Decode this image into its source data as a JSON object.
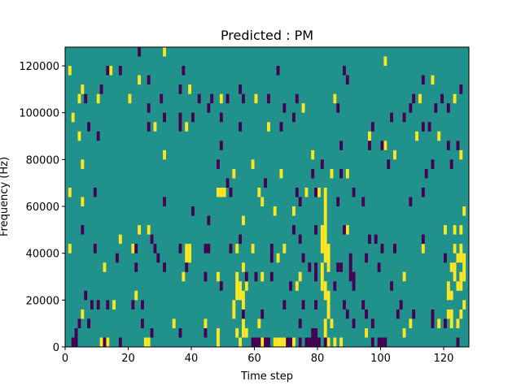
{
  "chart_data": {
    "type": "heatmap",
    "title": "Predicted : PM",
    "xlabel": "Time step",
    "ylabel": "Frequency (Hz)",
    "xlim": [
      0,
      128
    ],
    "ylim": [
      0,
      128000
    ],
    "x_ticks": [
      0,
      20,
      40,
      60,
      80,
      100,
      120
    ],
    "x_tick_labels": [
      "0",
      "20",
      "40",
      "60",
      "80",
      "100",
      "120"
    ],
    "y_ticks": [
      0,
      20000,
      40000,
      60000,
      80000,
      100000,
      120000
    ],
    "y_tick_labels": [
      "0",
      "20000",
      "40000",
      "60000",
      "80000",
      "100000",
      "120000"
    ],
    "grid": false,
    "colormap": "viridis",
    "colors": {
      "background": "#21918c",
      "high": "#fde725",
      "low": "#440154"
    },
    "note_cells_value_units": "cell = [time_step, frequency_bin_start_Hz, frequency_bin_end_Hz]",
    "high_cells": [
      [
        1,
        116000,
        120000
      ],
      [
        5,
        108000,
        112000
      ],
      [
        14,
        116000,
        120000
      ],
      [
        4,
        104000,
        108000
      ],
      [
        10,
        104000,
        108000
      ],
      [
        20,
        104000,
        108000
      ],
      [
        23,
        112000,
        116000
      ],
      [
        31,
        124000,
        128000
      ],
      [
        39,
        108000,
        112000
      ],
      [
        49,
        104000,
        108000
      ],
      [
        60,
        104000,
        108000
      ],
      [
        75,
        100000,
        104000
      ],
      [
        85,
        104000,
        108000
      ],
      [
        101,
        120000,
        124000
      ],
      [
        112,
        104000,
        108000
      ],
      [
        116,
        112000,
        116000
      ],
      [
        123,
        104000,
        108000
      ],
      [
        2,
        96000,
        100000
      ],
      [
        28,
        92000,
        96000
      ],
      [
        38,
        92000,
        96000
      ],
      [
        64,
        92000,
        96000
      ],
      [
        96,
        88000,
        92000
      ],
      [
        101,
        84000,
        88000
      ],
      [
        111,
        88000,
        92000
      ],
      [
        118,
        88000,
        92000
      ],
      [
        125,
        80000,
        84000
      ],
      [
        4,
        88000,
        92000
      ],
      [
        31,
        80000,
        84000
      ],
      [
        78,
        80000,
        84000
      ],
      [
        104,
        80000,
        84000
      ],
      [
        5,
        76000,
        80000
      ],
      [
        53,
        72000,
        76000
      ],
      [
        59,
        76000,
        80000
      ],
      [
        68,
        72000,
        76000
      ],
      [
        84,
        72000,
        76000
      ],
      [
        89,
        72000,
        76000
      ],
      [
        48,
        64000,
        68000
      ],
      [
        49,
        64000,
        68000
      ],
      [
        50,
        64000,
        68000
      ],
      [
        61,
        64000,
        68000
      ],
      [
        80,
        64000,
        68000
      ],
      [
        82,
        56000,
        68000
      ],
      [
        1,
        64000,
        68000
      ],
      [
        5,
        60000,
        64000
      ],
      [
        66,
        56000,
        60000
      ],
      [
        72,
        56000,
        60000
      ],
      [
        76,
        64000,
        68000
      ],
      [
        126,
        56000,
        60000
      ],
      [
        62,
        60000,
        64000
      ],
      [
        56,
        52000,
        56000
      ],
      [
        82,
        48000,
        56000
      ],
      [
        81,
        40000,
        52000
      ],
      [
        82,
        36000,
        48000
      ],
      [
        83,
        32000,
        44000
      ],
      [
        81,
        24000,
        36000
      ],
      [
        82,
        20000,
        28000
      ],
      [
        83,
        12000,
        24000
      ],
      [
        82,
        4000,
        12000
      ],
      [
        83,
        0,
        4000
      ],
      [
        23,
        48000,
        52000
      ],
      [
        26,
        48000,
        52000
      ],
      [
        89,
        48000,
        52000
      ],
      [
        120,
        48000,
        52000
      ],
      [
        123,
        48000,
        52000
      ],
      [
        125,
        48000,
        52000
      ],
      [
        1,
        40000,
        44000
      ],
      [
        17,
        44000,
        48000
      ],
      [
        21,
        40000,
        44000
      ],
      [
        38,
        36000,
        44000
      ],
      [
        39,
        36000,
        44000
      ],
      [
        54,
        40000,
        44000
      ],
      [
        59,
        40000,
        44000
      ],
      [
        67,
        36000,
        40000
      ],
      [
        69,
        40000,
        44000
      ],
      [
        113,
        40000,
        44000
      ],
      [
        123,
        40000,
        44000
      ],
      [
        124,
        36000,
        40000
      ],
      [
        125,
        36000,
        44000
      ],
      [
        126,
        28000,
        40000
      ],
      [
        12,
        32000,
        36000
      ],
      [
        37,
        28000,
        32000
      ],
      [
        48,
        28000,
        32000
      ],
      [
        56,
        32000,
        36000
      ],
      [
        62,
        28000,
        32000
      ],
      [
        74,
        28000,
        32000
      ],
      [
        107,
        28000,
        32000
      ],
      [
        122,
        32000,
        36000
      ],
      [
        123,
        28000,
        36000
      ],
      [
        124,
        24000,
        28000
      ],
      [
        125,
        28000,
        32000
      ],
      [
        54,
        20000,
        32000
      ],
      [
        55,
        20000,
        28000
      ],
      [
        56,
        16000,
        24000
      ],
      [
        57,
        24000,
        28000
      ],
      [
        73,
        24000,
        28000
      ],
      [
        121,
        20000,
        28000
      ],
      [
        122,
        20000,
        24000
      ],
      [
        125,
        24000,
        28000
      ],
      [
        53,
        12000,
        20000
      ],
      [
        15,
        16000,
        20000
      ],
      [
        22,
        20000,
        24000
      ],
      [
        56,
        4000,
        16000
      ],
      [
        57,
        4000,
        8000
      ],
      [
        54,
        4000,
        8000
      ],
      [
        55,
        0,
        4000
      ],
      [
        44,
        8000,
        12000
      ],
      [
        48,
        0,
        8000
      ],
      [
        61,
        8000,
        12000
      ],
      [
        84,
        8000,
        12000
      ],
      [
        121,
        12000,
        16000
      ],
      [
        122,
        8000,
        16000
      ],
      [
        124,
        8000,
        12000
      ],
      [
        118,
        8000,
        12000
      ],
      [
        125,
        12000,
        16000
      ],
      [
        126,
        16000,
        20000
      ],
      [
        109,
        8000,
        12000
      ],
      [
        107,
        4000,
        8000
      ],
      [
        95,
        4000,
        8000
      ],
      [
        5,
        12000,
        16000
      ],
      [
        11,
        0,
        4000
      ],
      [
        13,
        0,
        4000
      ],
      [
        25,
        0,
        4000
      ],
      [
        26,
        0,
        4000
      ],
      [
        66,
        0,
        4000
      ],
      [
        67,
        0,
        4000
      ],
      [
        68,
        0,
        4000
      ],
      [
        69,
        0,
        4000
      ],
      [
        72,
        0,
        4000
      ],
      [
        85,
        0,
        4000
      ],
      [
        87,
        0,
        4000
      ],
      [
        34,
        8000,
        12000
      ],
      [
        62,
        0,
        4000
      ]
    ],
    "low_cells": [
      [
        13,
        116000,
        120000
      ],
      [
        17,
        116000,
        120000
      ],
      [
        26,
        112000,
        116000
      ],
      [
        23,
        124000,
        128000
      ],
      [
        37,
        116000,
        120000
      ],
      [
        55,
        108000,
        112000
      ],
      [
        67,
        116000,
        120000
      ],
      [
        89,
        112000,
        116000
      ],
      [
        113,
        112000,
        116000
      ],
      [
        125,
        108000,
        112000
      ],
      [
        30,
        104000,
        108000
      ],
      [
        36,
        108000,
        112000
      ],
      [
        42,
        104000,
        108000
      ],
      [
        46,
        104000,
        108000
      ],
      [
        51,
        104000,
        108000
      ],
      [
        56,
        104000,
        108000
      ],
      [
        64,
        104000,
        108000
      ],
      [
        73,
        104000,
        108000
      ],
      [
        88,
        116000,
        120000
      ],
      [
        110,
        104000,
        108000
      ],
      [
        119,
        104000,
        108000
      ],
      [
        6,
        104000,
        108000
      ],
      [
        11,
        108000,
        112000
      ],
      [
        26,
        100000,
        104000
      ],
      [
        45,
        100000,
        104000
      ],
      [
        69,
        100000,
        104000
      ],
      [
        86,
        100000,
        104000
      ],
      [
        109,
        100000,
        104000
      ],
      [
        117,
        100000,
        104000
      ],
      [
        121,
        100000,
        104000
      ],
      [
        31,
        96000,
        100000
      ],
      [
        36,
        96000,
        100000
      ],
      [
        40,
        96000,
        100000
      ],
      [
        49,
        96000,
        100000
      ],
      [
        72,
        96000,
        100000
      ],
      [
        103,
        96000,
        100000
      ],
      [
        107,
        96000,
        100000
      ],
      [
        7,
        92000,
        96000
      ],
      [
        26,
        92000,
        96000
      ],
      [
        36,
        92000,
        96000
      ],
      [
        55,
        92000,
        96000
      ],
      [
        68,
        92000,
        96000
      ],
      [
        97,
        92000,
        96000
      ],
      [
        113,
        92000,
        96000
      ],
      [
        115,
        92000,
        96000
      ],
      [
        10,
        88000,
        92000
      ],
      [
        49,
        84000,
        88000
      ],
      [
        87,
        84000,
        88000
      ],
      [
        96,
        84000,
        88000
      ],
      [
        100,
        84000,
        88000
      ],
      [
        121,
        84000,
        88000
      ],
      [
        124,
        84000,
        88000
      ],
      [
        48,
        76000,
        80000
      ],
      [
        81,
        76000,
        80000
      ],
      [
        102,
        76000,
        80000
      ],
      [
        116,
        76000,
        80000
      ],
      [
        122,
        76000,
        80000
      ],
      [
        78,
        72000,
        76000
      ],
      [
        87,
        72000,
        76000
      ],
      [
        114,
        72000,
        76000
      ],
      [
        51,
        68000,
        72000
      ],
      [
        52,
        64000,
        68000
      ],
      [
        63,
        68000,
        72000
      ],
      [
        9,
        64000,
        68000
      ],
      [
        73,
        64000,
        68000
      ],
      [
        79,
        64000,
        68000
      ],
      [
        91,
        64000,
        68000
      ],
      [
        113,
        64000,
        68000
      ],
      [
        31,
        60000,
        64000
      ],
      [
        74,
        60000,
        64000
      ],
      [
        86,
        60000,
        64000
      ],
      [
        94,
        60000,
        64000
      ],
      [
        109,
        60000,
        64000
      ],
      [
        40,
        56000,
        60000
      ],
      [
        45,
        52000,
        56000
      ],
      [
        72,
        48000,
        52000
      ],
      [
        79,
        48000,
        52000
      ],
      [
        88,
        48000,
        52000
      ],
      [
        5,
        48000,
        52000
      ],
      [
        27,
        44000,
        48000
      ],
      [
        55,
        44000,
        48000
      ],
      [
        74,
        44000,
        48000
      ],
      [
        96,
        44000,
        48000
      ],
      [
        98,
        44000,
        48000
      ],
      [
        113,
        44000,
        48000
      ],
      [
        104,
        40000,
        44000
      ],
      [
        9,
        40000,
        44000
      ],
      [
        22,
        40000,
        44000
      ],
      [
        28,
        40000,
        44000
      ],
      [
        36,
        40000,
        44000
      ],
      [
        44,
        40000,
        44000
      ],
      [
        45,
        40000,
        44000
      ],
      [
        52,
        40000,
        44000
      ],
      [
        65,
        40000,
        44000
      ],
      [
        100,
        40000,
        44000
      ],
      [
        16,
        36000,
        40000
      ],
      [
        29,
        36000,
        40000
      ],
      [
        65,
        36000,
        40000
      ],
      [
        75,
        36000,
        40000
      ],
      [
        90,
        36000,
        40000
      ],
      [
        95,
        36000,
        40000
      ],
      [
        120,
        36000,
        40000
      ],
      [
        22,
        32000,
        36000
      ],
      [
        31,
        32000,
        36000
      ],
      [
        38,
        32000,
        36000
      ],
      [
        77,
        32000,
        36000
      ],
      [
        79,
        32000,
        36000
      ],
      [
        86,
        32000,
        36000
      ],
      [
        87,
        32000,
        36000
      ],
      [
        90,
        32000,
        36000
      ],
      [
        99,
        32000,
        36000
      ],
      [
        44,
        28000,
        32000
      ],
      [
        79,
        28000,
        32000
      ],
      [
        90,
        28000,
        32000
      ],
      [
        91,
        24000,
        32000
      ],
      [
        57,
        28000,
        32000
      ],
      [
        65,
        28000,
        32000
      ],
      [
        60,
        28000,
        32000
      ],
      [
        49,
        24000,
        28000
      ],
      [
        71,
        24000,
        28000
      ],
      [
        85,
        24000,
        28000
      ],
      [
        103,
        24000,
        28000
      ],
      [
        6,
        20000,
        24000
      ],
      [
        13,
        16000,
        20000
      ],
      [
        21,
        16000,
        20000
      ],
      [
        24,
        16000,
        20000
      ],
      [
        8,
        16000,
        20000
      ],
      [
        10,
        16000,
        20000
      ],
      [
        69,
        16000,
        20000
      ],
      [
        75,
        16000,
        20000
      ],
      [
        79,
        16000,
        20000
      ],
      [
        88,
        16000,
        20000
      ],
      [
        94,
        16000,
        20000
      ],
      [
        106,
        16000,
        20000
      ],
      [
        4,
        8000,
        12000
      ],
      [
        56,
        12000,
        16000
      ],
      [
        62,
        12000,
        16000
      ],
      [
        89,
        12000,
        16000
      ],
      [
        95,
        12000,
        16000
      ],
      [
        105,
        12000,
        16000
      ],
      [
        110,
        12000,
        16000
      ],
      [
        116,
        12000,
        16000
      ],
      [
        7,
        8000,
        12000
      ],
      [
        24,
        8000,
        12000
      ],
      [
        74,
        8000,
        12000
      ],
      [
        91,
        8000,
        12000
      ],
      [
        97,
        8000,
        12000
      ],
      [
        116,
        8000,
        12000
      ],
      [
        120,
        8000,
        12000
      ],
      [
        3,
        0,
        8000
      ],
      [
        17,
        0,
        4000
      ],
      [
        27,
        4000,
        8000
      ],
      [
        36,
        4000,
        8000
      ],
      [
        44,
        4000,
        8000
      ],
      [
        59,
        0,
        4000
      ],
      [
        60,
        0,
        4000
      ],
      [
        61,
        0,
        4000
      ],
      [
        63,
        0,
        4000
      ],
      [
        64,
        0,
        4000
      ],
      [
        70,
        0,
        4000
      ],
      [
        71,
        0,
        4000
      ],
      [
        74,
        0,
        4000
      ],
      [
        77,
        0,
        4000
      ],
      [
        78,
        0,
        8000
      ],
      [
        79,
        0,
        8000
      ],
      [
        80,
        0,
        4000
      ],
      [
        97,
        0,
        4000
      ],
      [
        99,
        0,
        4000
      ],
      [
        100,
        0,
        4000
      ],
      [
        101,
        0,
        4000
      ],
      [
        124,
        0,
        4000
      ],
      [
        2,
        0,
        4000
      ],
      [
        12,
        0,
        4000
      ],
      [
        76,
        0,
        4000
      ],
      [
        82,
        0,
        4000
      ]
    ]
  }
}
